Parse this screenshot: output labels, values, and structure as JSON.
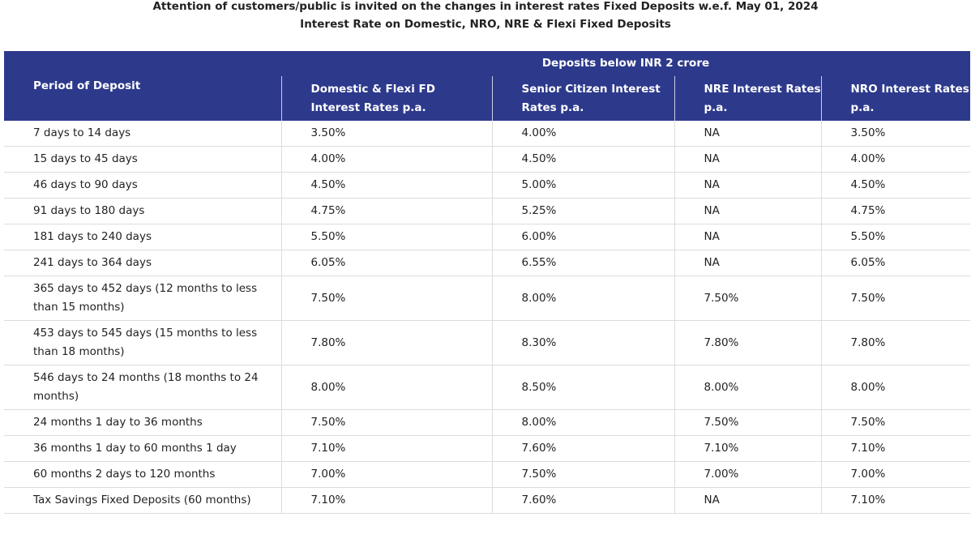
{
  "header": {
    "title": "Attention of customers/public is invited on the changes in interest rates Fixed Deposits w.e.f. May 01, 2024",
    "subtitle": "Interest Rate on Domestic, NRO, NRE & Flexi Fixed Deposits"
  },
  "table": {
    "first_column": "Period of Deposit",
    "group_header": "Deposits below INR 2 crore",
    "columns": [
      "Domestic & Flexi FD Interest Rates p.a.",
      "Senior Citizen Interest Rates p.a.",
      "NRE Interest Rates p.a.",
      "NRO Interest Rates p.a."
    ],
    "rows": [
      [
        "7 days to 14 days",
        "3.50%",
        "4.00%",
        "NA",
        "3.50%"
      ],
      [
        "15 days to 45 days",
        "4.00%",
        "4.50%",
        "NA",
        "4.00%"
      ],
      [
        "46 days to 90 days",
        "4.50%",
        "5.00%",
        "NA",
        "4.50%"
      ],
      [
        "91 days to 180 days",
        "4.75%",
        "5.25%",
        "NA",
        "4.75%"
      ],
      [
        "181 days to 240 days",
        "5.50%",
        "6.00%",
        "NA",
        "5.50%"
      ],
      [
        "241 days to 364 days",
        "6.05%",
        "6.55%",
        "NA",
        "6.05%"
      ],
      [
        "365 days to 452 days (12 months to less than 15 months)",
        "7.50%",
        "8.00%",
        "7.50%",
        "7.50%"
      ],
      [
        "453 days to 545 days (15 months to less than 18 months)",
        "7.80%",
        "8.30%",
        "7.80%",
        "7.80%"
      ],
      [
        "546 days to 24 months (18 months to 24 months)",
        "8.00%",
        "8.50%",
        "8.00%",
        "8.00%"
      ],
      [
        "24 months 1 day to 36 months",
        "7.50%",
        "8.00%",
        "7.50%",
        "7.50%"
      ],
      [
        "36 months 1 day to 60 months 1 day",
        "7.10%",
        "7.60%",
        "7.10%",
        "7.10%"
      ],
      [
        "60 months 2 days to 120 months",
        "7.00%",
        "7.50%",
        "7.00%",
        "7.00%"
      ],
      [
        "Tax Savings Fixed Deposits (60 months)",
        "7.10%",
        "7.60%",
        "NA",
        "7.10%"
      ]
    ]
  }
}
